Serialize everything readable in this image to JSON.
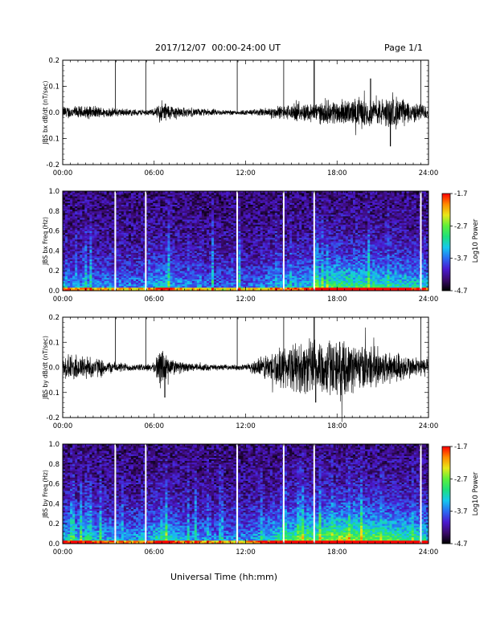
{
  "header": {
    "title": "2017/12/07  00:00-24:00 UT",
    "page": "Page 1/1"
  },
  "xaxis_title": "Universal Time (hh:mm)",
  "xtick_labels": [
    "00:00",
    "06:00",
    "12:00",
    "18:00",
    "24:00"
  ],
  "data_gaps_hours": [
    3.45,
    5.45,
    11.45,
    14.5,
    16.5,
    23.5
  ],
  "colors": {
    "trace": "#000000",
    "gap": "#ffffff",
    "colormap": [
      "#000000",
      "#3a0a6b",
      "#4a1ad0",
      "#2b6cf2",
      "#16c8ee",
      "#1ee07c",
      "#5ef03a",
      "#e8e818",
      "#ff8c00",
      "#ff0000"
    ]
  },
  "chart_data": [
    {
      "type": "line",
      "ylabel": "JBS bx dB/dt (nT/sec)",
      "ylim": [
        -0.2,
        0.2
      ],
      "yticks": [
        "0.2",
        "0.1",
        "0.0",
        "-0.1",
        "-0.2"
      ],
      "xlim_hours": [
        0,
        24
      ],
      "envelope": {
        "x_hours": [
          0,
          1,
          2,
          3,
          4,
          5,
          6,
          6.5,
          7,
          8,
          9,
          10,
          11,
          12,
          13,
          14,
          15,
          16,
          17,
          18,
          19,
          19.5,
          20,
          21,
          22,
          23,
          24
        ],
        "amplitude": [
          0.02,
          0.02,
          0.02,
          0.015,
          0.012,
          0.01,
          0.01,
          0.04,
          0.025,
          0.015,
          0.012,
          0.01,
          0.008,
          0.008,
          0.012,
          0.02,
          0.025,
          0.03,
          0.035,
          0.04,
          0.04,
          0.05,
          0.04,
          0.045,
          0.05,
          0.03,
          0.025
        ]
      },
      "spikes": [
        {
          "x_hours": 16.5,
          "y": 0.2
        },
        {
          "x_hours": 20.2,
          "y": 0.13
        },
        {
          "x_hours": 21.5,
          "y": -0.13
        }
      ]
    },
    {
      "type": "heatmap",
      "ylabel": "JBS bx Freq (Hz)",
      "ylim": [
        0,
        1.0
      ],
      "yticks": [
        "1.0",
        "0.8",
        "0.6",
        "0.4",
        "0.2",
        "0.0"
      ],
      "xlim_hours": [
        0,
        24
      ],
      "colorbar": {
        "label": "Log10 Power",
        "min": -4.7,
        "max": -1.7,
        "ticks": [
          "-1.7",
          "-2.7",
          "-3.7",
          "-4.7"
        ]
      },
      "activity": {
        "x_hours": [
          0,
          2,
          4,
          5.5,
          6.5,
          8,
          10,
          12,
          13,
          14,
          16,
          17,
          18,
          19,
          20,
          21,
          22,
          23,
          24
        ],
        "level": [
          0.35,
          0.3,
          0.3,
          0.3,
          0.45,
          0.3,
          0.25,
          0.25,
          0.3,
          0.35,
          0.4,
          0.5,
          0.6,
          0.55,
          0.55,
          0.5,
          0.5,
          0.45,
          0.4
        ]
      }
    },
    {
      "type": "line",
      "ylabel": "JBS by dB/dt (nT/sec)",
      "ylim": [
        -0.2,
        0.2
      ],
      "yticks": [
        "0.2",
        "0.1",
        "0.0",
        "-0.1",
        "-0.2"
      ],
      "xlim_hours": [
        0,
        24
      ],
      "envelope": {
        "x_hours": [
          0,
          1,
          2,
          3,
          4,
          5,
          6,
          6.5,
          7,
          8,
          9,
          10,
          11,
          12,
          13,
          14,
          15,
          16,
          17,
          18,
          19,
          20,
          21,
          22,
          23,
          24
        ],
        "amplitude": [
          0.04,
          0.045,
          0.035,
          0.02,
          0.015,
          0.01,
          0.015,
          0.08,
          0.03,
          0.015,
          0.012,
          0.01,
          0.008,
          0.01,
          0.035,
          0.06,
          0.075,
          0.09,
          0.1,
          0.09,
          0.08,
          0.07,
          0.06,
          0.05,
          0.035,
          0.03
        ]
      },
      "spikes": [
        {
          "x_hours": 16.5,
          "y": 0.2
        },
        {
          "x_hours": 16.6,
          "y": -0.14
        },
        {
          "x_hours": 6.7,
          "y": -0.12
        }
      ]
    },
    {
      "type": "heatmap",
      "ylabel": "JBS by Freq (Hz)",
      "ylim": [
        0,
        1.0
      ],
      "yticks": [
        "1.0",
        "0.8",
        "0.6",
        "0.4",
        "0.2",
        "0.0"
      ],
      "xlim_hours": [
        0,
        24
      ],
      "colorbar": {
        "label": "Log10 Power",
        "min": -4.7,
        "max": -1.7,
        "ticks": [
          "-1.7",
          "-2.7",
          "-3.7",
          "-4.7"
        ]
      },
      "activity": {
        "x_hours": [
          0,
          2,
          4,
          5.5,
          6.5,
          8,
          10,
          12,
          13,
          14,
          16,
          17,
          18,
          19,
          20,
          21,
          22,
          23,
          24
        ],
        "level": [
          0.45,
          0.4,
          0.35,
          0.35,
          0.55,
          0.35,
          0.3,
          0.3,
          0.4,
          0.5,
          0.6,
          0.65,
          0.75,
          0.75,
          0.7,
          0.65,
          0.6,
          0.55,
          0.5
        ]
      }
    }
  ]
}
